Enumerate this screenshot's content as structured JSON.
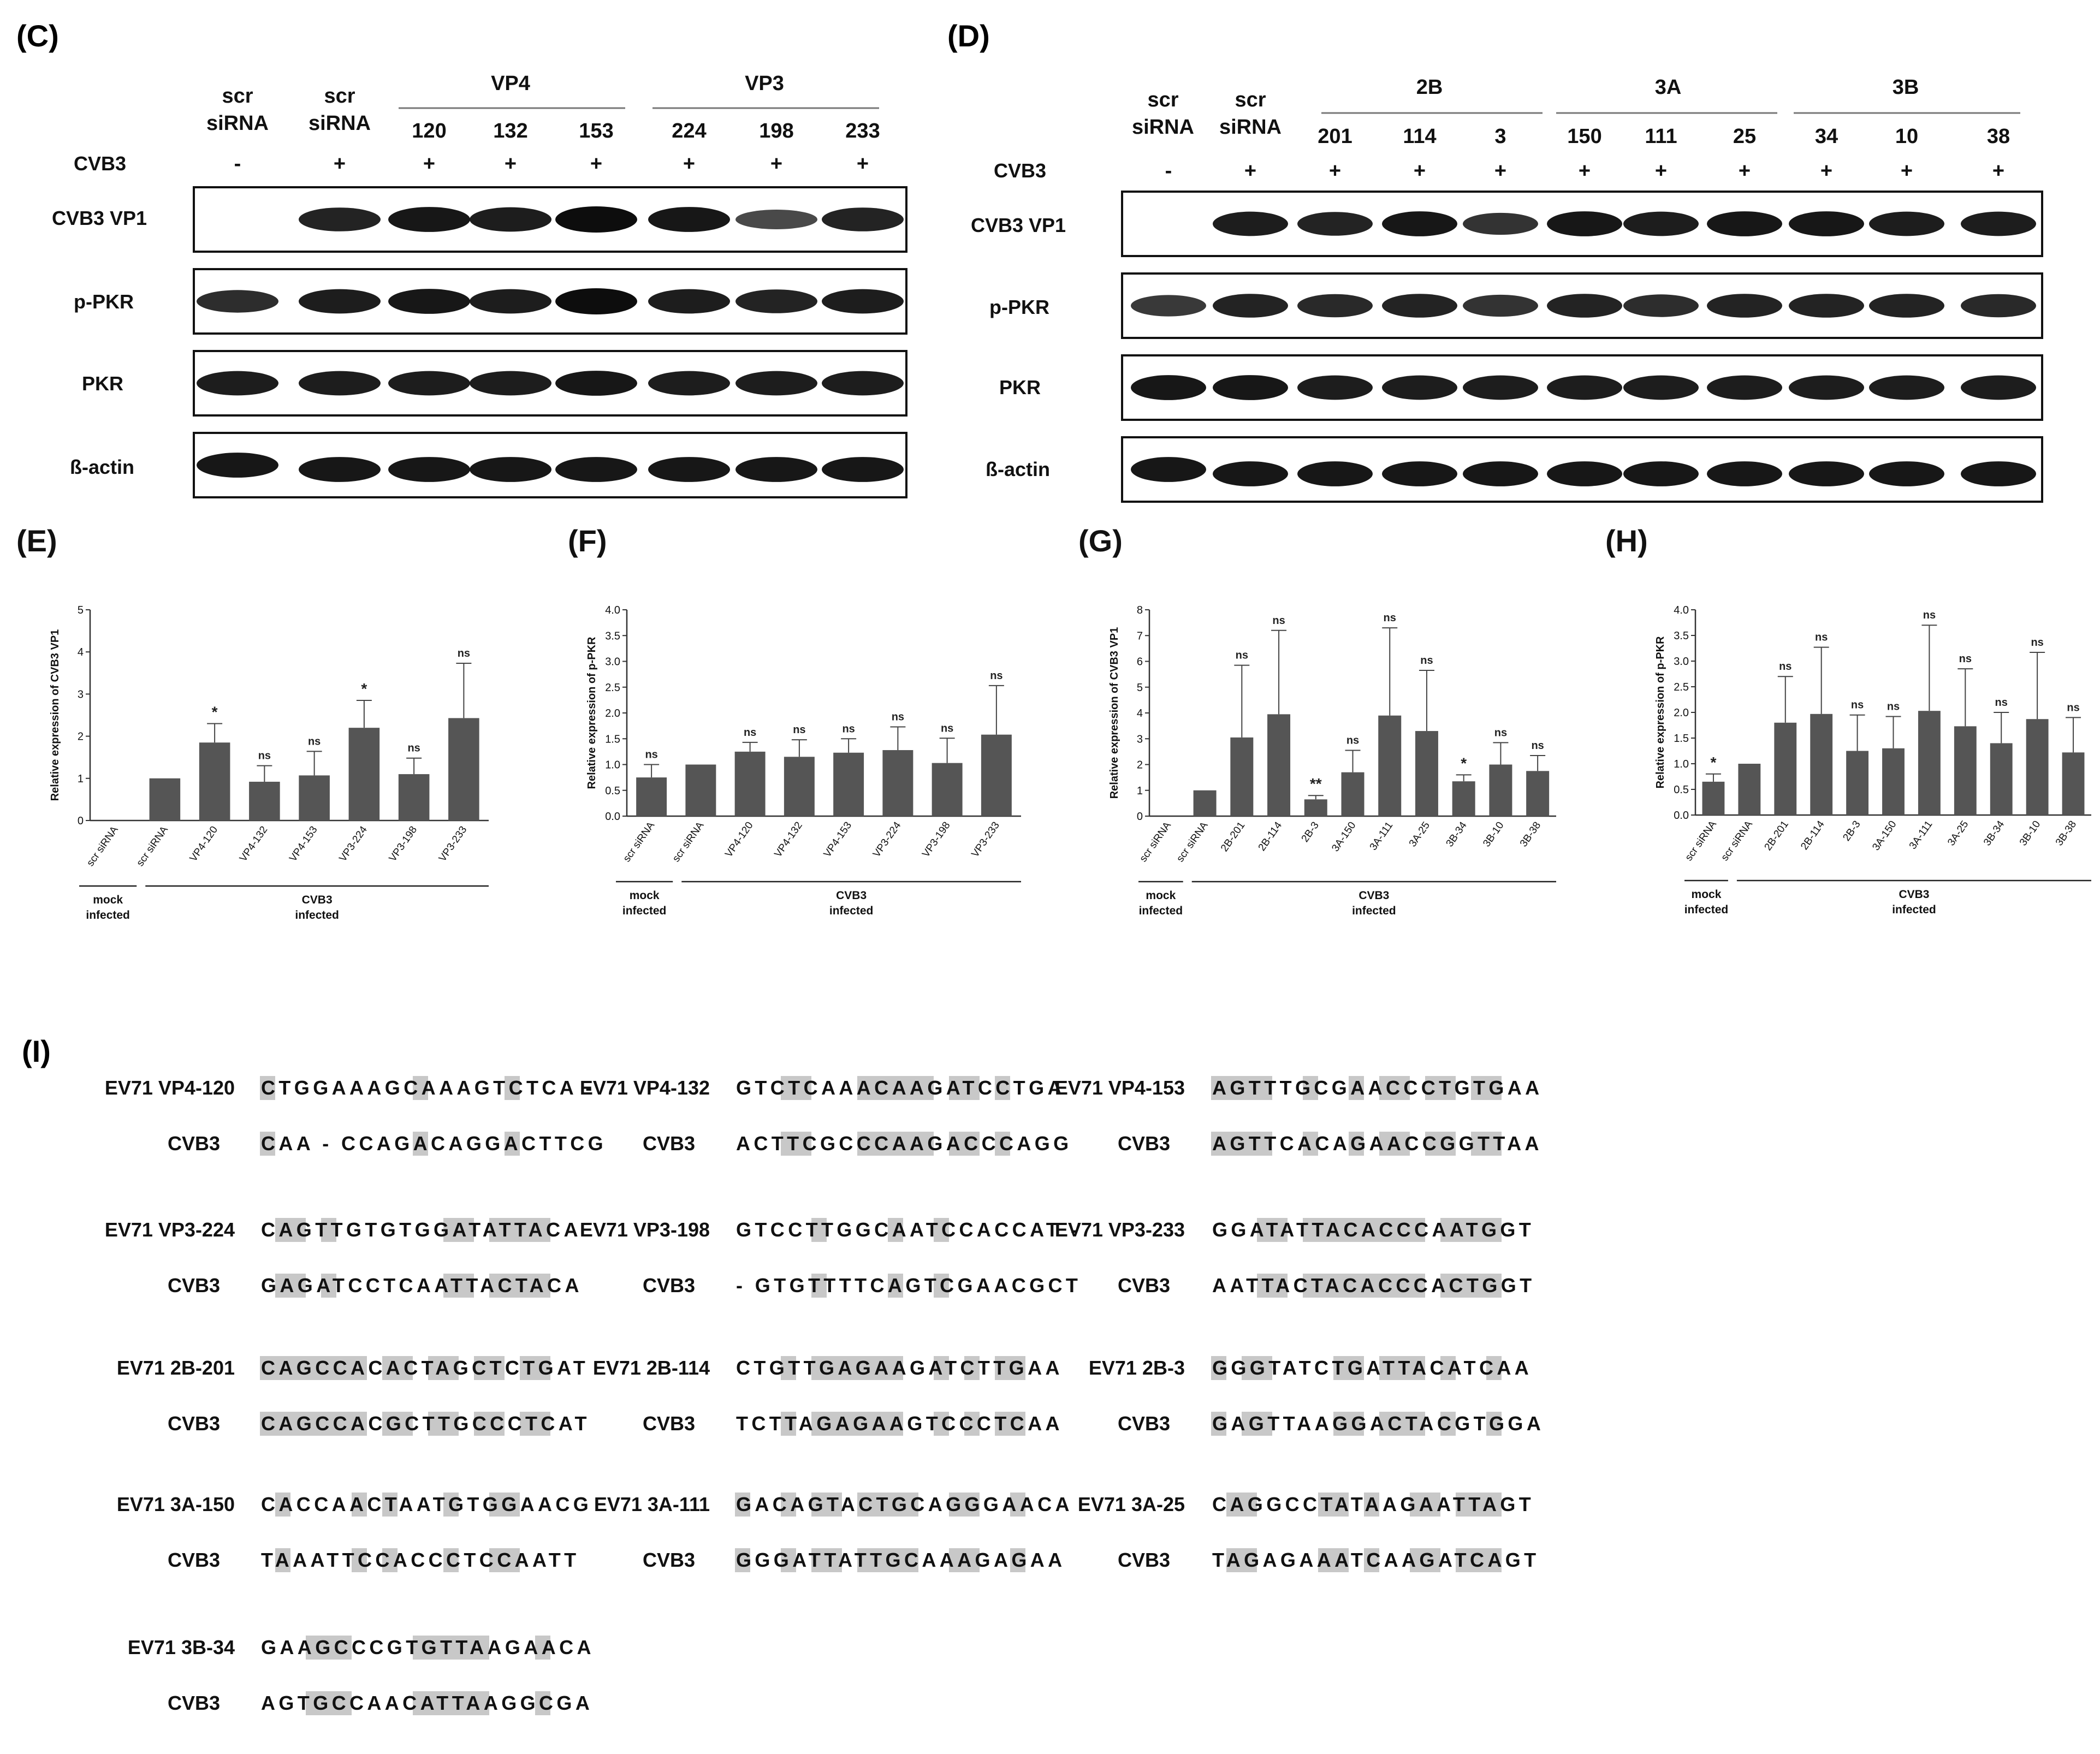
{
  "panel_letters": {
    "C": "(C)",
    "D": "(D)",
    "E": "(E)",
    "F": "(F)",
    "G": "(G)",
    "H": "(H)",
    "I": "(I)"
  },
  "blot_C": {
    "scr_line1": "scr",
    "scr_line2": "siRNA",
    "group_vp4": "VP4",
    "group_vp3": "VP3",
    "lanes": [
      "120",
      "132",
      "153",
      "224",
      "198",
      "233"
    ],
    "cvb3_label": "CVB3",
    "cvb3_signs": [
      "-",
      "+",
      "+",
      "+",
      "+",
      "+",
      "+",
      "+"
    ],
    "rows": [
      "CVB3 VP1",
      "p-PKR",
      "PKR",
      "ß-actin"
    ],
    "vp1_intensity": [
      0,
      0.8,
      0.9,
      0.85,
      1.0,
      0.9,
      0.45,
      0.8
    ],
    "ppkr_intensity": [
      0.7,
      0.85,
      0.9,
      0.85,
      1.0,
      0.85,
      0.8,
      0.85
    ],
    "pkr_intensity": [
      0.85,
      0.85,
      0.85,
      0.85,
      0.9,
      0.85,
      0.85,
      0.85
    ],
    "actin_intensity": [
      0.9,
      0.9,
      0.9,
      0.9,
      0.9,
      0.9,
      0.9,
      0.9
    ]
  },
  "blot_D": {
    "scr_line1": "scr",
    "scr_line2": "siRNA",
    "group_2b": "2B",
    "group_3a": "3A",
    "group_3b": "3B",
    "lanes": [
      "201",
      "114",
      "3",
      "150",
      "111",
      "25",
      "34",
      "10",
      "38"
    ],
    "cvb3_label": "CVB3",
    "cvb3_signs": [
      "-",
      "+",
      "+",
      "+",
      "+",
      "+",
      "+",
      "+",
      "+",
      "+",
      "+"
    ],
    "rows": [
      "CVB3 VP1",
      "p-PKR",
      "PKR",
      "ß-actin"
    ],
    "vp1_intensity": [
      0,
      0.85,
      0.8,
      0.9,
      0.65,
      0.9,
      0.85,
      0.9,
      0.9,
      0.85,
      0.85
    ],
    "ppkr_intensity": [
      0.6,
      0.8,
      0.75,
      0.8,
      0.65,
      0.8,
      0.7,
      0.8,
      0.8,
      0.8,
      0.75
    ],
    "pkr_intensity": [
      0.9,
      0.9,
      0.85,
      0.85,
      0.85,
      0.85,
      0.85,
      0.85,
      0.85,
      0.85,
      0.85
    ],
    "actin_intensity": [
      0.9,
      0.9,
      0.9,
      0.9,
      0.9,
      0.9,
      0.9,
      0.9,
      0.9,
      0.9,
      0.9
    ]
  },
  "chart_data": [
    {
      "type": "bar",
      "id": "E",
      "ylabel": "Relative expression of CVB3 VP1",
      "ylim": [
        0,
        5
      ],
      "yticks": [
        "0",
        "1",
        "2",
        "3",
        "4",
        "5"
      ],
      "categories": [
        "scr siRNA",
        "scr siRNA",
        "VP4-120",
        "VP4-132",
        "VP4-153",
        "VP3-224",
        "VP3-198",
        "VP3-233"
      ],
      "values": [
        0,
        1.0,
        1.85,
        0.92,
        1.07,
        2.2,
        1.1,
        2.43
      ],
      "errors": [
        0,
        0,
        0.45,
        0.38,
        0.57,
        0.65,
        0.38,
        1.3
      ],
      "annotations": [
        "",
        "",
        "*",
        "ns",
        "ns",
        "*",
        "ns",
        "ns"
      ],
      "group_labels": {
        "mock_1": "mock",
        "mock_2": "infected",
        "cvb3_1": "CVB3",
        "cvb3_2": "infected"
      }
    },
    {
      "type": "bar",
      "id": "F",
      "ylabel": "Relative expression of p-PKR",
      "ylim": [
        0,
        4
      ],
      "yticks": [
        "0.0",
        "0.5",
        "1.0",
        "1.5",
        "2.0",
        "2.5",
        "3.0",
        "3.5",
        "4.0"
      ],
      "categories": [
        "scr siRNA",
        "scr siRNA",
        "VP4-120",
        "VP4-132",
        "VP4-153",
        "VP3-224",
        "VP3-198",
        "VP3-233"
      ],
      "values": [
        0.75,
        1.0,
        1.25,
        1.15,
        1.23,
        1.28,
        1.03,
        1.58
      ],
      "errors": [
        0.25,
        0,
        0.18,
        0.33,
        0.27,
        0.45,
        0.48,
        0.95
      ],
      "annotations": [
        "ns",
        "",
        "ns",
        "ns",
        "ns",
        "ns",
        "ns",
        "ns"
      ],
      "group_labels": {
        "mock_1": "mock",
        "mock_2": "infected",
        "cvb3_1": "CVB3",
        "cvb3_2": "infected"
      }
    },
    {
      "type": "bar",
      "id": "G",
      "ylabel": "Relative expression of CVB3 VP1",
      "ylim": [
        0,
        8
      ],
      "yticks": [
        "0",
        "1",
        "2",
        "3",
        "4",
        "5",
        "6",
        "7",
        "8"
      ],
      "categories": [
        "scr siRNA",
        "scr siRNA",
        "2B-201",
        "2B-114",
        "2B-3",
        "3A-150",
        "3A-111",
        "3A-25",
        "3B-34",
        "3B-10",
        "3B-38"
      ],
      "values": [
        0,
        1.0,
        3.05,
        3.95,
        0.65,
        1.7,
        3.9,
        3.3,
        1.35,
        2.0,
        1.75
      ],
      "errors": [
        0,
        0,
        2.8,
        3.25,
        0.15,
        0.85,
        3.4,
        2.35,
        0.25,
        0.85,
        0.6
      ],
      "annotations": [
        "",
        "",
        "ns",
        "ns",
        "**",
        "ns",
        "ns",
        "ns",
        "*",
        "ns",
        "ns"
      ],
      "group_labels": {
        "mock_1": "mock",
        "mock_2": "infected",
        "cvb3_1": "CVB3",
        "cvb3_2": "infected"
      }
    },
    {
      "type": "bar",
      "id": "H",
      "ylabel": "Relative expression of p-PKR",
      "ylim": [
        0,
        4
      ],
      "yticks": [
        "0.0",
        "0.5",
        "1.0",
        "1.5",
        "2.0",
        "2.5",
        "3.0",
        "3.5",
        "4.0"
      ],
      "categories": [
        "scr siRNA",
        "scr siRNA",
        "2B-201",
        "2B-114",
        "2B-3",
        "3A-150",
        "3A-111",
        "3A-25",
        "3B-34",
        "3B-10",
        "3B-38"
      ],
      "values": [
        0.65,
        1.0,
        1.8,
        1.97,
        1.25,
        1.3,
        2.03,
        1.73,
        1.4,
        1.87,
        1.22
      ],
      "errors": [
        0.15,
        0,
        0.9,
        1.3,
        0.7,
        0.62,
        1.67,
        1.12,
        0.6,
        1.3,
        0.68
      ],
      "annotations": [
        "*",
        "",
        "ns",
        "ns",
        "ns",
        "ns",
        "ns",
        "ns",
        "ns",
        "ns",
        "ns"
      ],
      "group_labels": {
        "mock_1": "mock",
        "mock_2": "infected",
        "cvb3_1": "CVB3",
        "cvb3_2": "infected"
      }
    }
  ],
  "alignments": [
    {
      "label": "EV71 VP4-120",
      "ref": "CVB3",
      "seq1": "CTGGAAAGCAAAGTCTCA -",
      "seq2": "CAA - CCAGACAGGACTTCG"
    },
    {
      "label": "EV71 VP4-132",
      "ref": "CVB3",
      "seq1": "GTCTCAAACAAGATCCTGA",
      "seq2": "ACTTCGCCCAAGACCCAGG"
    },
    {
      "label": "EV71 VP4-153",
      "ref": "CVB3",
      "seq1": "AGTTTGCGAACCCTGTGAA",
      "seq2": "AGTTCACAGAACCGGTTAA"
    },
    {
      "label": "EV71 VP3-224",
      "ref": "CVB3",
      "seq1": "CAGTTGTGTGGATATTACA",
      "seq2": "GAGATCCTCAATTACTACA"
    },
    {
      "label": "EV71 VP3-198",
      "ref": "CVB3",
      "seq1": "GTCCTTGGCAATCCACCAT -",
      "seq2": "- GTGTTTTCAGTCGAACGCT"
    },
    {
      "label": "EV71 VP3-233",
      "ref": "CVB3",
      "seq1": "GGATATTACACCCAATGGT",
      "seq2": "AATTACTACACCCACTGGT"
    },
    {
      "label": "EV71 2B-201",
      "ref": "CVB3",
      "seq1": "CAGCCACACTAGCTCTGAT",
      "seq2": "CAGCCACGCTTGCCCTCAT"
    },
    {
      "label": "EV71 2B-114",
      "ref": "CVB3",
      "seq1": "CTGTTGAGAAGATCTTGAA",
      "seq2": "TCTTAGAGAAGTCCCTCAA"
    },
    {
      "label": "EV71 2B-3",
      "ref": "CVB3",
      "seq1": "GGGTATCTGATTACATCAA",
      "seq2": "GAGTTAAGGACTACGTGGA"
    },
    {
      "label": "EV71 3A-150",
      "ref": "CVB3",
      "seq1": "CACCAACTAATGTGGAACG",
      "seq2": "TAAATTCCACCCTCCAATT"
    },
    {
      "label": "EV71 3A-111",
      "ref": "CVB3",
      "seq1": "GACAGTACTGCAGGGAACA",
      "seq2": "GGGATTATTGCAAAGAGAA"
    },
    {
      "label": "EV71 3A-25",
      "ref": "CVB3",
      "seq1": "CAGGCCTATAAGAATTAGT",
      "seq2": "TAGAGAAATCAAGATCAGT"
    },
    {
      "label": "EV71 3B-34",
      "ref": "CVB3",
      "seq1": "GAAGCCCGTGTTAAGAACA",
      "seq2": "AGTGCCAACATTAAGGCGA"
    }
  ],
  "colors": {
    "bar": "#555555",
    "text": "#111111",
    "highlight": "#c8c8c8",
    "band": "#0d0d0d",
    "ns": "#222222"
  }
}
